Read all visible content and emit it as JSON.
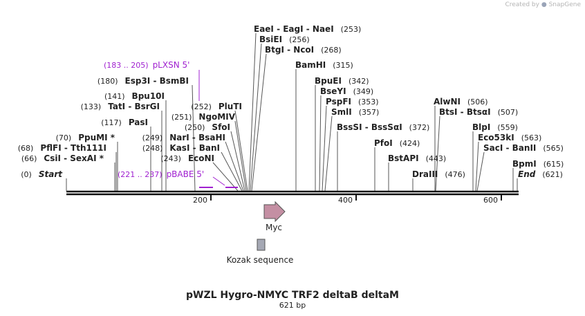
{
  "credit": {
    "prefix": "Created by",
    "brand": "SnapGene"
  },
  "plasmid": {
    "name": "pWZL Hygro-NMYC TRF2 deltaB deltaM",
    "length": "621 bp"
  },
  "axis": {
    "ticks": [
      "200",
      "400",
      "600"
    ]
  },
  "primers": [
    {
      "range": "(183 .. 205)",
      "name": "pLXSN 5'"
    },
    {
      "range": "(221 .. 237)",
      "name": "pBABE 5'"
    }
  ],
  "sites": [
    {
      "key": "eaei",
      "label": "EaeI  -  EagI  -  NaeI",
      "pos": "(253)"
    },
    {
      "key": "bsiei",
      "label": "BsiEI",
      "pos": "(256)"
    },
    {
      "key": "btgi",
      "label": "BtgI  -  NcoI",
      "pos": "(268)"
    },
    {
      "key": "bamhi",
      "label": "BamHI",
      "pos": "(315)"
    },
    {
      "key": "bpuei",
      "label": "BpuEI",
      "pos": "(342)"
    },
    {
      "key": "bseyi",
      "label": "BseYI",
      "pos": "(349)"
    },
    {
      "key": "pspfi",
      "label": "PspFI",
      "pos": "(353)"
    },
    {
      "key": "smli",
      "label": "SmlI",
      "pos": "(357)"
    },
    {
      "key": "bsssi",
      "label": "BssSI  -  BssSαI",
      "pos": "(372)"
    },
    {
      "key": "pfoi",
      "label": "PfoI",
      "pos": "(424)"
    },
    {
      "key": "bstapi",
      "label": "BstAPI",
      "pos": "(443)"
    },
    {
      "key": "draiii",
      "label": "DraIII",
      "pos": "(476)"
    },
    {
      "key": "alwni",
      "label": "AlwNI",
      "pos": "(506)"
    },
    {
      "key": "btsi",
      "label": "BtsI  -  BtsαI",
      "pos": "(507)"
    },
    {
      "key": "blpi",
      "label": "BlpI",
      "pos": "(559)"
    },
    {
      "key": "eco53ki",
      "label": "Eco53kI",
      "pos": "(563)"
    },
    {
      "key": "saci",
      "label": "SacI  -  BanII",
      "pos": "(565)"
    },
    {
      "key": "bpmi",
      "label": "BpmI",
      "pos": "(615)"
    },
    {
      "key": "end",
      "label": "End",
      "pos": "(621)"
    },
    {
      "key": "esp3i",
      "label": "Esp3I  -  BsmBI",
      "pos": "(180)"
    },
    {
      "key": "bpu10i",
      "label": "Bpu10I",
      "pos": "(141)"
    },
    {
      "key": "tati",
      "label": "TatI  -  BsrGI",
      "pos": "(133)"
    },
    {
      "key": "pasi",
      "label": "PasI",
      "pos": "(117)"
    },
    {
      "key": "ppumi",
      "label": "PpuMI *",
      "pos": "(70)"
    },
    {
      "key": "pflfi",
      "label": "PflFI  -  Tth111I",
      "pos": "(68)"
    },
    {
      "key": "csii",
      "label": "CsiI  -  SexAI *",
      "pos": "(66)"
    },
    {
      "key": "start",
      "label": "Start",
      "pos": "(0)"
    },
    {
      "key": "pluti",
      "label": "PluTI",
      "pos": "(252)"
    },
    {
      "key": "ngomiv",
      "label": "NgoMIV",
      "pos": "(251)"
    },
    {
      "key": "sfoi",
      "label": "SfoI",
      "pos": "(250)"
    },
    {
      "key": "nari",
      "label": "NarI  -  BsaHI",
      "pos": "(249)"
    },
    {
      "key": "kasi",
      "label": "KasI  -  BanI",
      "pos": "(248)"
    },
    {
      "key": "econi",
      "label": "EcoNI",
      "pos": "(243)"
    }
  ],
  "features": [
    {
      "name": "Myc",
      "color": "#c48fa3"
    },
    {
      "name": "Kozak sequence",
      "color": "#a5a8b4"
    }
  ],
  "colors": {
    "primer": "#a020d0",
    "backbone": "#111111"
  }
}
